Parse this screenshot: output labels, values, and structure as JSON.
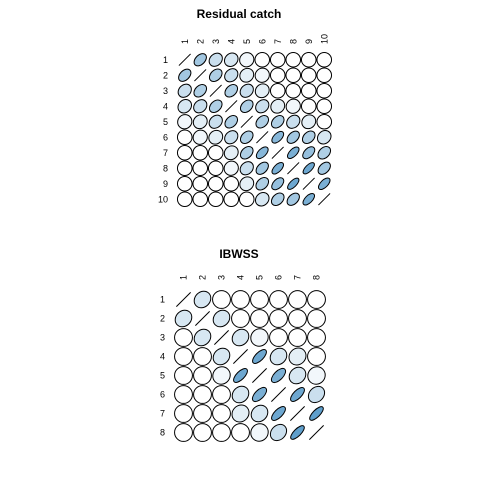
{
  "chart_data": [
    {
      "type": "heatmap",
      "title": "Residual catch",
      "labels": [
        "1",
        "2",
        "3",
        "4",
        "5",
        "6",
        "7",
        "8",
        "9",
        "10"
      ],
      "cell_shape": "ellipse",
      "values": [
        [
          1.0,
          0.35,
          0.2,
          0.15,
          0.05,
          0.0,
          0.0,
          0.0,
          0.0,
          0.0
        ],
        [
          0.35,
          1.0,
          0.3,
          0.2,
          0.1,
          0.05,
          0.0,
          0.0,
          0.0,
          0.0
        ],
        [
          0.2,
          0.3,
          1.0,
          0.3,
          0.2,
          0.1,
          0.0,
          0.0,
          0.0,
          0.0
        ],
        [
          0.15,
          0.2,
          0.3,
          1.0,
          0.3,
          0.2,
          0.1,
          0.05,
          0.0,
          0.0
        ],
        [
          0.05,
          0.1,
          0.2,
          0.3,
          1.0,
          0.3,
          0.3,
          0.2,
          0.1,
          0.0
        ],
        [
          0.0,
          0.05,
          0.1,
          0.2,
          0.3,
          1.0,
          0.45,
          0.35,
          0.3,
          0.15
        ],
        [
          0.0,
          0.0,
          0.0,
          0.1,
          0.3,
          0.45,
          1.0,
          0.5,
          0.4,
          0.3
        ],
        [
          0.0,
          0.0,
          0.0,
          0.05,
          0.2,
          0.35,
          0.5,
          1.0,
          0.55,
          0.35
        ],
        [
          0.0,
          0.0,
          0.0,
          0.0,
          0.1,
          0.3,
          0.4,
          0.55,
          1.0,
          0.5
        ],
        [
          0.0,
          0.0,
          0.0,
          0.0,
          0.0,
          0.15,
          0.3,
          0.35,
          0.5,
          1.0
        ]
      ]
    },
    {
      "type": "heatmap",
      "title": "IBWSS",
      "labels": [
        "1",
        "2",
        "3",
        "4",
        "5",
        "6",
        "7",
        "8"
      ],
      "cell_shape": "ellipse",
      "values": [
        [
          1.0,
          0.15,
          0.0,
          0.0,
          0.0,
          0.0,
          0.0,
          0.0
        ],
        [
          0.15,
          1.0,
          0.15,
          0.0,
          0.0,
          0.0,
          0.0,
          0.0
        ],
        [
          0.0,
          0.15,
          1.0,
          0.15,
          0.05,
          0.0,
          0.0,
          0.0
        ],
        [
          0.0,
          0.0,
          0.15,
          1.0,
          0.55,
          0.15,
          0.1,
          0.0
        ],
        [
          0.0,
          0.0,
          0.05,
          0.55,
          1.0,
          0.5,
          0.15,
          0.05
        ],
        [
          0.0,
          0.0,
          0.0,
          0.15,
          0.5,
          1.0,
          0.55,
          0.2
        ],
        [
          0.0,
          0.0,
          0.0,
          0.1,
          0.15,
          0.55,
          1.0,
          0.6
        ],
        [
          0.0,
          0.0,
          0.0,
          0.0,
          0.05,
          0.2,
          0.6,
          1.0
        ]
      ]
    }
  ],
  "colors": {
    "outline": "#000000",
    "low": "#ffffff",
    "high": "#3a88c0",
    "line": "#000000"
  }
}
